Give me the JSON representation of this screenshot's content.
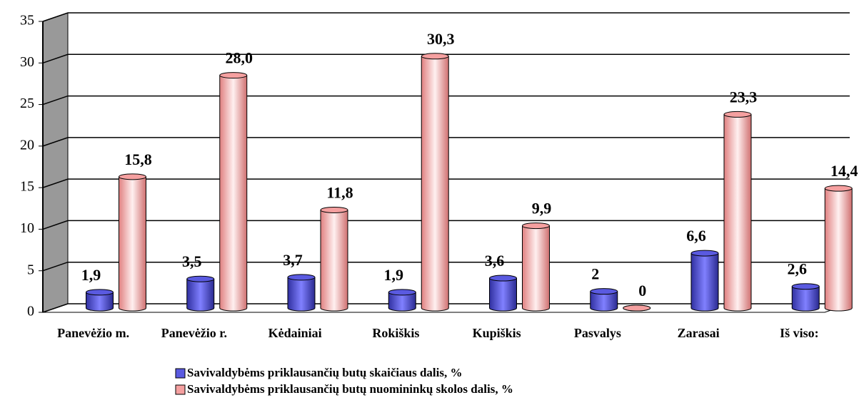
{
  "chart_data": {
    "type": "bar",
    "categories": [
      "Panevėžio m.",
      "Panevėžio r.",
      "Kėdainiai",
      "Rokiškis",
      "Kupiškis",
      "Pasvalys",
      "Zarasai",
      "Iš viso:"
    ],
    "series": [
      {
        "name": "Savivaldybėms priklausančių butų  skaičiaus dalis, %",
        "color": "#5a5ae0",
        "values": [
          1.9,
          3.5,
          3.7,
          1.9,
          3.6,
          2,
          6.6,
          2.6
        ],
        "value_labels": [
          "1,9",
          "3,5",
          "3,7",
          "1,9",
          "3,6",
          "2",
          "6,6",
          "2,6"
        ]
      },
      {
        "name": "Savivaldybėms priklausančių butų nuomininkų  skolos dalis, %",
        "color": "#f5a0a0",
        "values": [
          15.8,
          28.0,
          11.8,
          30.3,
          9.9,
          0,
          23.3,
          14.4
        ],
        "value_labels": [
          "15,8",
          "28,0",
          "11,8",
          "30,3",
          "9,9",
          "0",
          "23,3",
          "14,4"
        ]
      }
    ],
    "ylim": [
      0,
      35
    ],
    "yticks": [
      0,
      5,
      10,
      15,
      20,
      25,
      30,
      35
    ],
    "grid": true
  }
}
